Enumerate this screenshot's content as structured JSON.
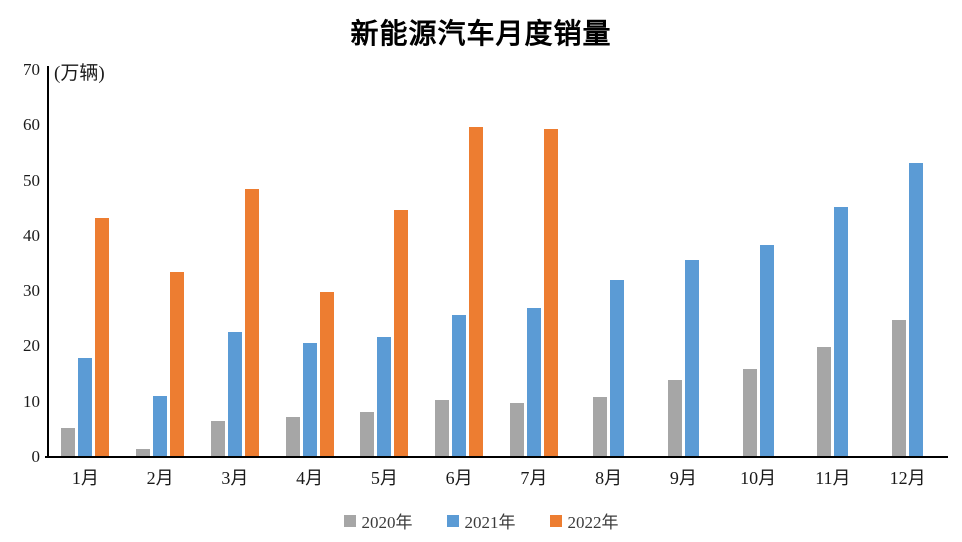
{
  "chart_data": {
    "type": "bar",
    "title": "新能源汽车月度销量",
    "unit_label": "(万辆)",
    "categories": [
      "1月",
      "2月",
      "3月",
      "4月",
      "5月",
      "6月",
      "7月",
      "8月",
      "9月",
      "10月",
      "11月",
      "12月"
    ],
    "series": [
      {
        "name": "2020年",
        "color": "#A6A6A6",
        "values": [
          5.3,
          1.5,
          6.6,
          7.2,
          8.2,
          10.4,
          9.8,
          10.9,
          14.0,
          16.0,
          19.9,
          24.8
        ]
      },
      {
        "name": "2021年",
        "color": "#5B9BD5",
        "values": [
          17.9,
          11.0,
          22.6,
          20.6,
          21.7,
          25.6,
          27.0,
          32.1,
          35.6,
          38.3,
          45.2,
          53.1
        ]
      },
      {
        "name": "2022年",
        "color": "#ED7D31",
        "values": [
          43.2,
          33.4,
          48.4,
          29.8,
          44.7,
          59.7,
          59.3,
          null,
          null,
          null,
          null,
          null
        ]
      }
    ],
    "y_axis": {
      "min": 0,
      "max": 70,
      "step": 10,
      "ticks": [
        0,
        10,
        20,
        30,
        40,
        50,
        60,
        70
      ]
    },
    "grid": false,
    "legend_position": "bottom",
    "axis_color": "#000000",
    "background_color": "#FFFFFF"
  }
}
